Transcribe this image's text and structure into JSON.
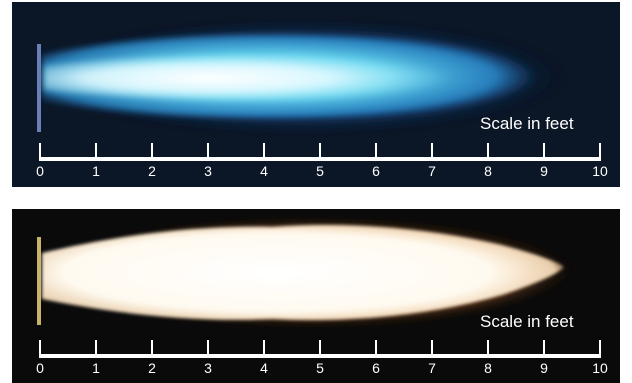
{
  "panels": [
    {
      "id": "top",
      "flame": "blue",
      "scale_label": "Scale in feet",
      "ticks": [
        "0",
        "1",
        "2",
        "3",
        "4",
        "5",
        "6",
        "7",
        "8",
        "9",
        "10"
      ],
      "colors": {
        "background": "#0b1626",
        "flame_core": "#e8fbff",
        "flame_mid": "#5ad3ea",
        "flame_outer": "#1a5fa8"
      }
    },
    {
      "id": "bottom",
      "flame": "luminous",
      "scale_label": "Scale in feet",
      "ticks": [
        "0",
        "1",
        "2",
        "3",
        "4",
        "5",
        "6",
        "7",
        "8",
        "9",
        "10"
      ],
      "colors": {
        "background": "#0a0a0a",
        "flame_core": "#ffffff",
        "flame_mid": "#fff4e0",
        "flame_outer": "#c06a25"
      }
    }
  ]
}
